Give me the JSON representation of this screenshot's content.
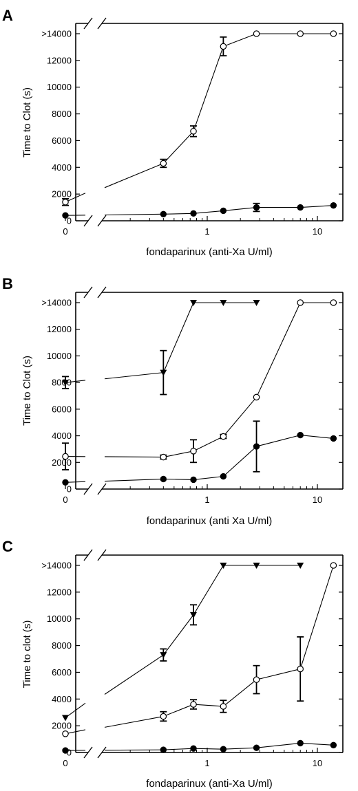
{
  "chart_data": [
    {
      "panel": "A",
      "type": "line",
      "xscale": "log-with-break",
      "xlabel": "fondaparinux (anti-Xa U/ml)",
      "ylabel": "Time to Clot (s)",
      "ylim": [
        0,
        14000
      ],
      "yticks": [
        "0",
        "2000",
        "4000",
        "6000",
        "8000",
        "10000",
        "12000",
        ">14000"
      ],
      "xticks": [
        "0",
        "1",
        "10"
      ],
      "series": [
        {
          "marker": "open-circle",
          "x": [
            0,
            0.4,
            0.75,
            1.4,
            2.8,
            7,
            14
          ],
          "y": [
            1400,
            4300,
            6700,
            13050,
            14000,
            14000,
            14000
          ],
          "err": [
            250,
            300,
            400,
            700,
            0,
            0,
            0
          ]
        },
        {
          "marker": "filled-circle",
          "x": [
            0,
            0.4,
            0.75,
            1.4,
            2.8,
            7,
            14
          ],
          "y": [
            400,
            500,
            550,
            750,
            1000,
            1000,
            1150
          ],
          "err": [
            0,
            0,
            0,
            0,
            300,
            0,
            0
          ]
        }
      ]
    },
    {
      "panel": "B",
      "type": "line",
      "xscale": "log-with-break",
      "xlabel": "fondaparinux (anti Xa U/ml)",
      "ylabel": "Time to Clot (s)",
      "ylim": [
        0,
        14000
      ],
      "yticks": [
        "0",
        "2000",
        "4000",
        "6000",
        "8000",
        "10000",
        "12000",
        ">14000"
      ],
      "xticks": [
        "0",
        "1",
        "10"
      ],
      "series": [
        {
          "marker": "filled-triangle-down",
          "x": [
            0,
            0.4,
            0.75,
            1.4,
            2.8
          ],
          "y": [
            8000,
            8750,
            14000,
            14000,
            14000
          ],
          "err": [
            450,
            1650,
            0,
            0,
            0
          ]
        },
        {
          "marker": "open-circle",
          "x": [
            0,
            0.4,
            0.75,
            1.4,
            2.8,
            7,
            14
          ],
          "y": [
            2450,
            2400,
            2850,
            3950,
            6900,
            14000,
            14000
          ],
          "err": [
            1000,
            150,
            850,
            150,
            0,
            0,
            0
          ]
        },
        {
          "marker": "filled-circle",
          "x": [
            0,
            0.4,
            0.75,
            1.4,
            2.8,
            7,
            14
          ],
          "y": [
            500,
            750,
            700,
            950,
            3200,
            4050,
            3800
          ],
          "err": [
            0,
            0,
            0,
            0,
            1900,
            0,
            0
          ]
        }
      ]
    },
    {
      "panel": "C",
      "type": "line",
      "xscale": "log-with-break",
      "xlabel": "fondaparinux (anti-Xa U/ml)",
      "ylabel": "Time to clot (s)",
      "ylim": [
        0,
        14000
      ],
      "yticks": [
        "0",
        "2000",
        "4000",
        "6000",
        "8000",
        "10000",
        "12000",
        ">14000"
      ],
      "xticks": [
        "0",
        "1",
        "10"
      ],
      "series": [
        {
          "marker": "filled-triangle-down",
          "x": [
            0,
            0.4,
            0.75,
            1.4,
            2.8,
            7
          ],
          "y": [
            2600,
            7300,
            10300,
            14000,
            14000,
            14000
          ],
          "err": [
            0,
            450,
            750,
            0,
            0,
            0
          ]
        },
        {
          "marker": "open-circle",
          "x": [
            0,
            0.4,
            0.75,
            1.4,
            2.8,
            7,
            14
          ],
          "y": [
            1400,
            2700,
            3600,
            3450,
            5450,
            6250,
            14000
          ],
          "err": [
            0,
            350,
            350,
            450,
            1050,
            2400,
            0
          ]
        },
        {
          "marker": "filled-circle",
          "x": [
            0,
            0.4,
            0.75,
            1.4,
            2.8,
            7,
            14
          ],
          "y": [
            150,
            200,
            300,
            250,
            350,
            700,
            550
          ],
          "err": [
            0,
            0,
            0,
            0,
            0,
            0,
            0
          ]
        }
      ]
    }
  ]
}
